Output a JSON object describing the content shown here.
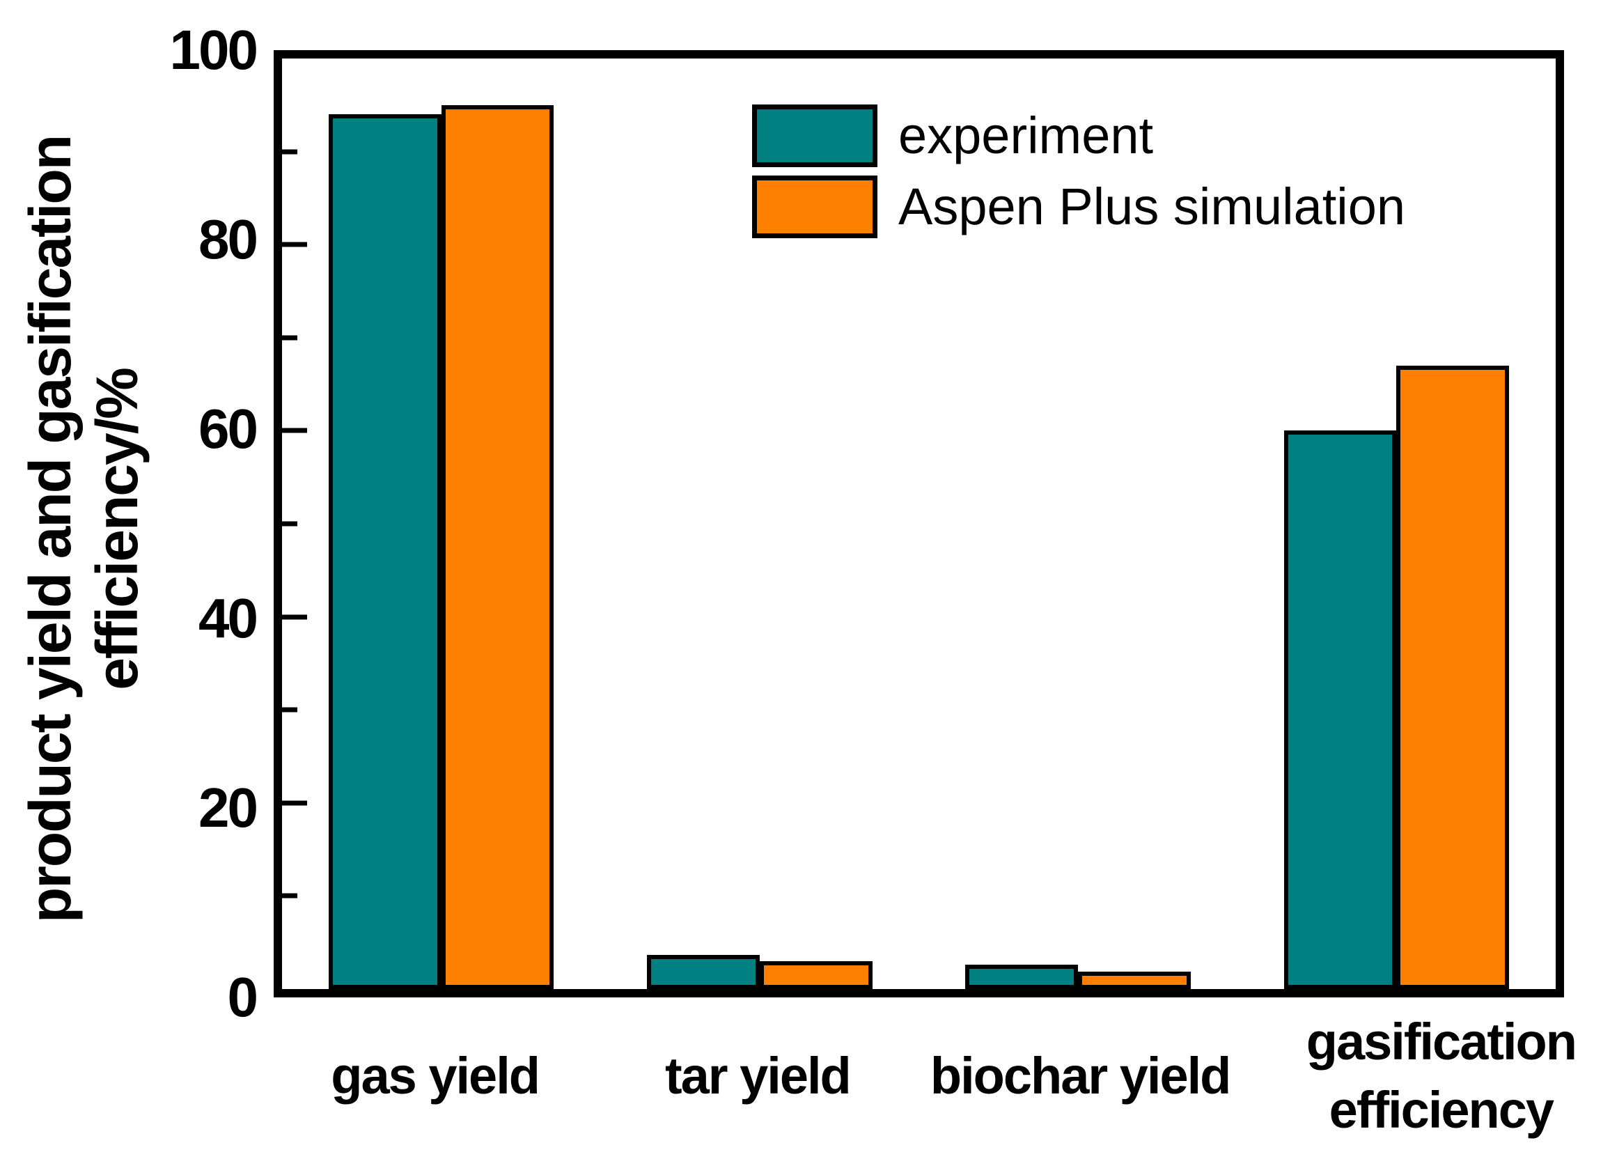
{
  "figure": {
    "background": "#ffffff",
    "frame_color": "#000000"
  },
  "y_axis": {
    "title_line1": "product yield and gasification",
    "title_line2": "efficiency/%",
    "tick_labels": [
      "0",
      "20",
      "40",
      "60",
      "80",
      "100"
    ]
  },
  "chart_data": {
    "type": "bar",
    "title": "",
    "xlabel": "",
    "ylabel": "product yield and gasification efficiency/%",
    "ylim": [
      0,
      100
    ],
    "yticks_major": [
      0,
      20,
      40,
      60,
      80,
      100
    ],
    "yticks_minor": [
      10,
      30,
      50,
      70,
      90
    ],
    "grid": false,
    "legend_position": "top-center-inside",
    "categories": [
      "gas yield",
      "tar yield",
      "biochar yield",
      "gasification efficiency"
    ],
    "x_tick_label_lines": [
      [
        "gas yield"
      ],
      [
        "tar yield"
      ],
      [
        "biochar yield"
      ],
      [
        "gasification",
        "efficiency"
      ]
    ],
    "series": [
      {
        "name": "experiment",
        "color": "#008080",
        "values": [
          94,
          3.7,
          2.6,
          60
        ]
      },
      {
        "name": "Aspen Plus simulation",
        "color": "#FF8000",
        "values": [
          95,
          3.0,
          1.9,
          67
        ]
      }
    ]
  }
}
